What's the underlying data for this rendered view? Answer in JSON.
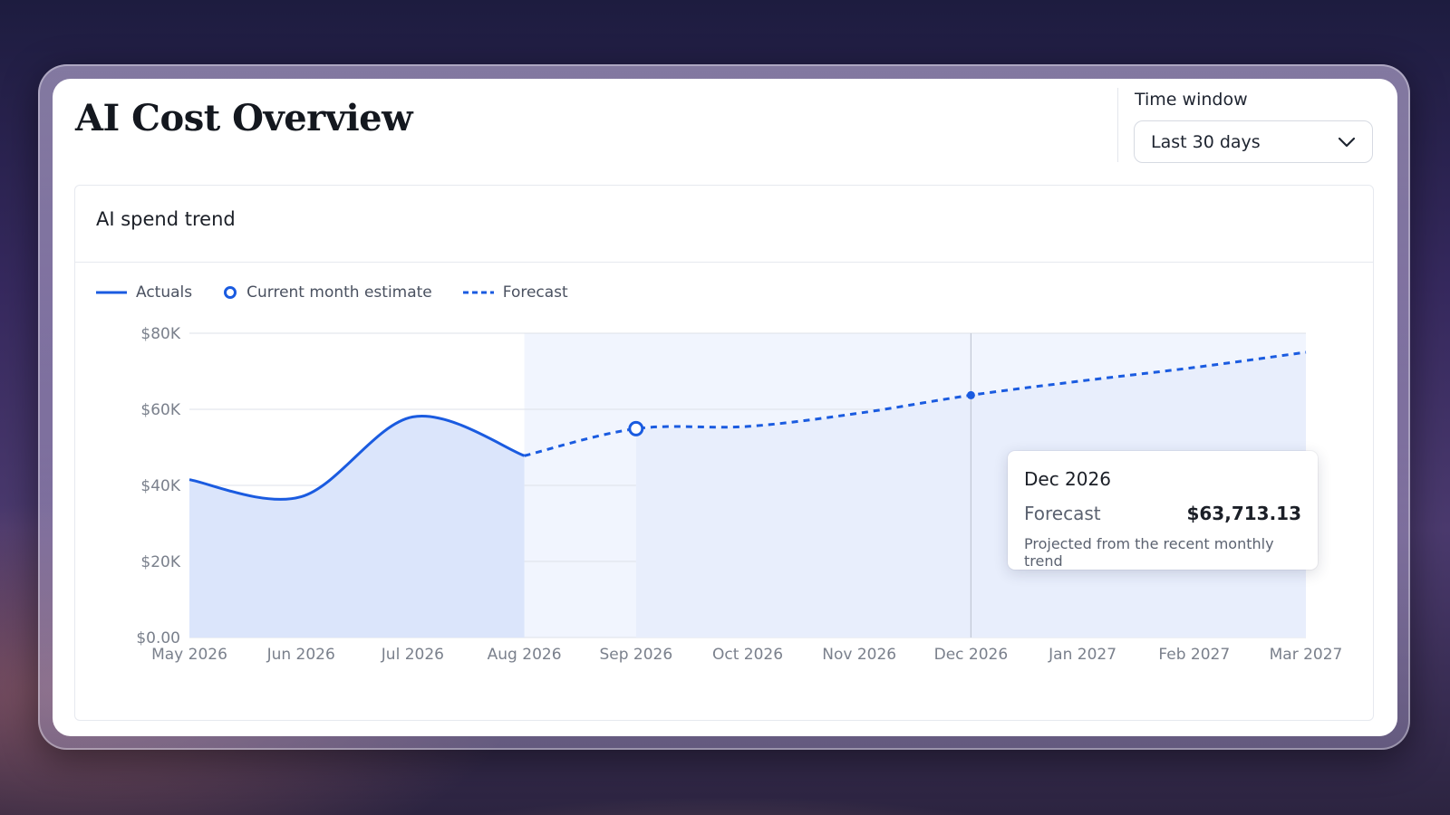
{
  "page": {
    "title": "AI Cost Overview"
  },
  "time_window": {
    "label": "Time window",
    "selected": "Last 30 days",
    "icon": "chevron-down-icon"
  },
  "panel": {
    "title": "AI spend trend"
  },
  "legend": {
    "actuals": "Actuals",
    "estimate": "Current month estimate",
    "forecast": "Forecast"
  },
  "tooltip": {
    "month": "Dec 2026",
    "label": "Forecast",
    "value": "$63,713.13",
    "note": "Projected from the recent monthly trend"
  },
  "colors": {
    "line": "#1a5be0",
    "actual_fill": "#dbe5fb",
    "forecast_fill": "#e8eefc",
    "band": "#f1f5fe",
    "grid": "#dde1e8"
  },
  "chart_data": {
    "type": "line",
    "title": "",
    "categories": [
      "May 2026",
      "Jun 2026",
      "Jul 2026",
      "Aug 2026",
      "Sep 2026",
      "Oct 2026",
      "Nov 2026",
      "Dec 2026",
      "Jan 2027",
      "Feb 2027",
      "Mar 2027"
    ],
    "y_ticks": [
      "$0.00",
      "$20K",
      "$40K",
      "$60K",
      "$80K"
    ],
    "ylim": [
      0,
      80000
    ],
    "grid": true,
    "legend_position": "top-left",
    "series": [
      {
        "name": "Actuals",
        "style": "solid",
        "x": [
          "May 2026",
          "Jun 2026",
          "Jul 2026",
          "Aug 2026"
        ],
        "values": [
          41500,
          37000,
          58000,
          47800
        ]
      },
      {
        "name": "Current month estimate",
        "style": "marker",
        "x": [
          "Sep 2026"
        ],
        "values": [
          54900
        ]
      },
      {
        "name": "Forecast",
        "style": "dashed",
        "x": [
          "Aug 2026",
          "Sep 2026",
          "Oct 2026",
          "Nov 2026",
          "Dec 2026",
          "Jan 2027",
          "Feb 2027",
          "Mar 2027"
        ],
        "values": [
          47800,
          54900,
          55500,
          59000,
          63713.13,
          67500,
          71000,
          75000
        ]
      }
    ],
    "highlight": {
      "x": "Dec 2026",
      "value": 63713.13
    }
  }
}
